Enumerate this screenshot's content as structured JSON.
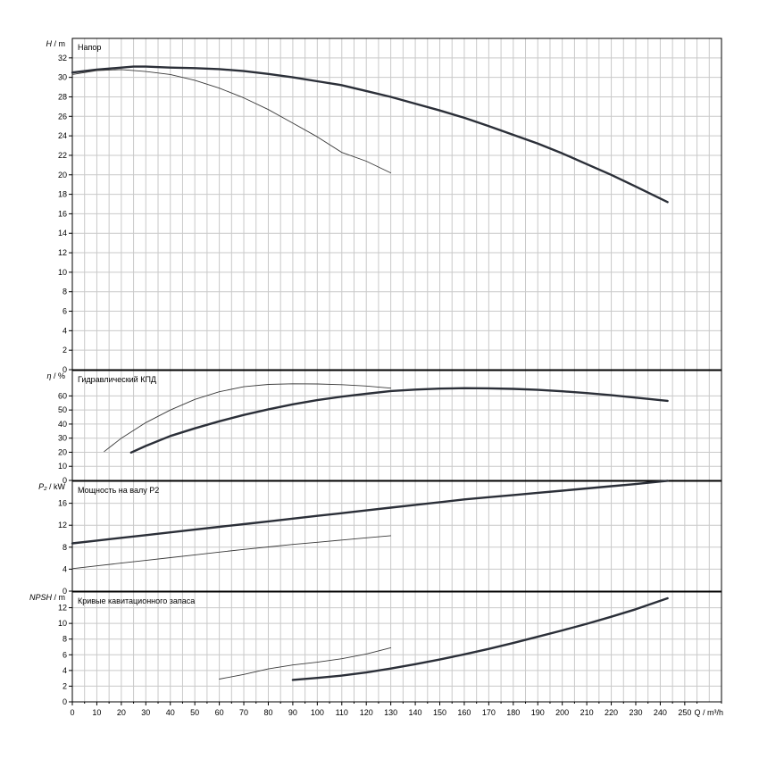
{
  "chart_data": {
    "type": "line",
    "x_axis": {
      "label": "Q / m³/h",
      "min": 0,
      "max": 265,
      "ticks": [
        0,
        10,
        20,
        30,
        40,
        50,
        60,
        70,
        80,
        90,
        100,
        110,
        120,
        130,
        140,
        150,
        160,
        170,
        180,
        190,
        200,
        210,
        220,
        230,
        240,
        250
      ]
    },
    "grid": true,
    "panels": [
      {
        "id": "head",
        "title": "Напор",
        "ylabel_sym": "H",
        "ylabel_unit": "/ m",
        "ylim": [
          0,
          34
        ],
        "yticks": [
          0,
          2,
          4,
          6,
          8,
          10,
          12,
          14,
          16,
          18,
          20,
          22,
          24,
          26,
          28,
          30,
          32
        ],
        "series": [
          {
            "emphasis": "thick",
            "x": [
              0,
              10,
              20,
              25,
              30,
              40,
              50,
              60,
              70,
              80,
              90,
              100,
              110,
              120,
              130,
              140,
              150,
              160,
              170,
              180,
              190,
              200,
              210,
              220,
              230,
              243
            ],
            "y": [
              30.5,
              30.8,
              31.0,
              31.1,
              31.1,
              31.0,
              30.95,
              30.85,
              30.65,
              30.35,
              30.0,
              29.6,
              29.2,
              28.6,
              28.0,
              27.3,
              26.6,
              25.85,
              25.0,
              24.1,
              23.2,
              22.2,
              21.1,
              20.0,
              18.8,
              17.2
            ]
          },
          {
            "emphasis": "thin",
            "x": [
              0,
              10,
              20,
              30,
              40,
              50,
              60,
              70,
              80,
              90,
              100,
              110,
              120,
              130
            ],
            "y": [
              30.3,
              30.7,
              30.8,
              30.6,
              30.3,
              29.7,
              28.9,
              27.9,
              26.7,
              25.3,
              23.9,
              22.3,
              21.4,
              20.2
            ]
          }
        ]
      },
      {
        "id": "efficiency",
        "title": "Гидравлический КПД",
        "ylabel_sym": "η",
        "ylabel_unit": "/ %",
        "ylim": [
          0,
          78
        ],
        "yticks": [
          0,
          10,
          20,
          30,
          40,
          50,
          60
        ],
        "series": [
          {
            "emphasis": "thick",
            "x": [
              24,
              30,
              40,
              50,
              60,
              70,
              80,
              90,
              100,
              110,
              120,
              130,
              140,
              150,
              160,
              170,
              180,
              190,
              200,
              210,
              220,
              230,
              243
            ],
            "y": [
              19.8,
              24.5,
              31.5,
              37.0,
              42.0,
              46.5,
              50.5,
              54.0,
              57.0,
              59.5,
              61.5,
              63.5,
              64.5,
              65.2,
              65.5,
              65.4,
              65.0,
              64.3,
              63.3,
              62.0,
              60.5,
              58.8,
              56.5
            ]
          },
          {
            "emphasis": "thin",
            "x": [
              13,
              20,
              30,
              40,
              50,
              60,
              70,
              80,
              90,
              100,
              110,
              120,
              130
            ],
            "y": [
              20.5,
              30.0,
              41.0,
              50.0,
              57.5,
              63.0,
              66.5,
              68.2,
              68.6,
              68.5,
              68.0,
              67.0,
              65.5
            ]
          }
        ]
      },
      {
        "id": "power",
        "title": "Мощность на валу P2",
        "ylabel_sym": "P₂",
        "ylabel_unit": "/ kW",
        "ylim": [
          0,
          20
        ],
        "yticks": [
          0,
          4,
          8,
          12,
          16
        ],
        "series": [
          {
            "emphasis": "thick",
            "x": [
              0,
              10,
              20,
              30,
              40,
              50,
              60,
              70,
              80,
              90,
              100,
              110,
              120,
              130,
              140,
              150,
              160,
              170,
              180,
              190,
              200,
              210,
              220,
              230,
              243
            ],
            "y": [
              8.7,
              9.2,
              9.7,
              10.2,
              10.7,
              11.2,
              11.7,
              12.2,
              12.7,
              13.2,
              13.7,
              14.2,
              14.7,
              15.2,
              15.7,
              16.2,
              16.7,
              17.1,
              17.5,
              17.9,
              18.3,
              18.7,
              19.1,
              19.5,
              20.1
            ]
          },
          {
            "emphasis": "thin",
            "x": [
              0,
              10,
              20,
              30,
              40,
              50,
              60,
              70,
              80,
              90,
              100,
              110,
              120,
              130
            ],
            "y": [
              4.1,
              4.6,
              5.1,
              5.6,
              6.1,
              6.6,
              7.1,
              7.6,
              8.05,
              8.5,
              8.9,
              9.3,
              9.7,
              10.1
            ]
          }
        ]
      },
      {
        "id": "npsh",
        "title": "Кривые кавитационного запаса",
        "ylabel_sym": "NPSH",
        "ylabel_unit": "/ m",
        "ylim": [
          0,
          14
        ],
        "yticks": [
          0,
          2,
          4,
          6,
          8,
          10,
          12
        ],
        "series": [
          {
            "emphasis": "thick",
            "x": [
              90,
              100,
              110,
              120,
              130,
              140,
              150,
              160,
              170,
              180,
              190,
              200,
              210,
              220,
              230,
              243
            ],
            "y": [
              2.8,
              3.05,
              3.35,
              3.75,
              4.25,
              4.8,
              5.4,
              6.05,
              6.75,
              7.5,
              8.3,
              9.1,
              9.95,
              10.85,
              11.8,
              13.2
            ]
          },
          {
            "emphasis": "thin",
            "x": [
              60,
              70,
              80,
              90,
              100,
              110,
              120,
              130
            ],
            "y": [
              2.9,
              3.5,
              4.2,
              4.7,
              5.05,
              5.5,
              6.1,
              6.9
            ]
          }
        ]
      }
    ]
  }
}
